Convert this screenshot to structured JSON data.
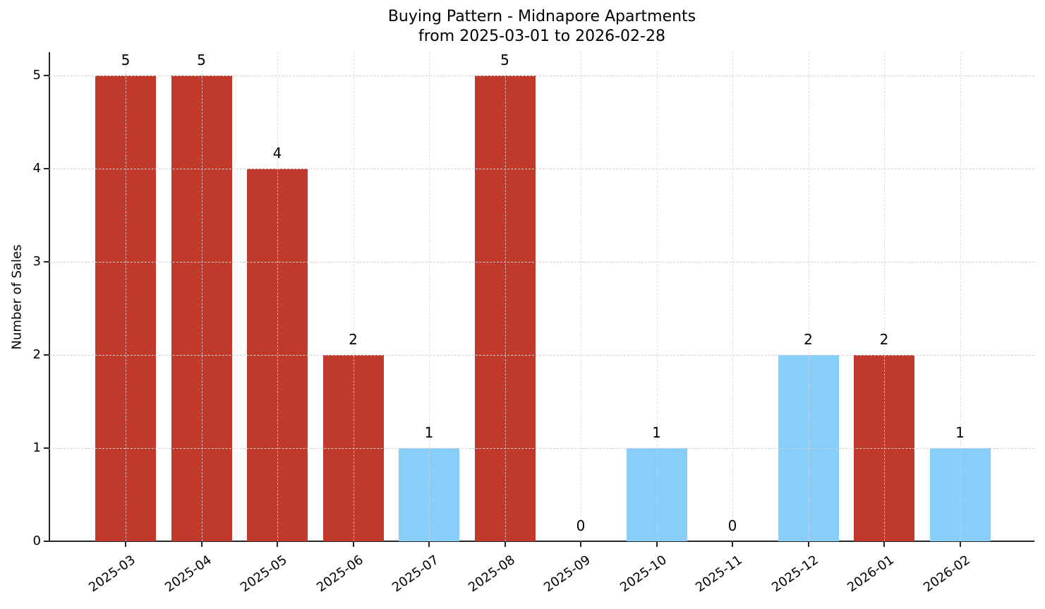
{
  "chart_data": {
    "type": "bar",
    "title": "Buying Pattern - Midnapore Apartments",
    "subtitle": "from 2025-03-01 to 2026-02-28",
    "xlabel": "",
    "ylabel": "Number of Sales",
    "ylim": [
      0,
      5.25
    ],
    "yticks": [
      0,
      1,
      2,
      3,
      4,
      5
    ],
    "grid": true,
    "legend": null,
    "categories": [
      "2025-03",
      "2025-04",
      "2025-05",
      "2025-06",
      "2025-07",
      "2025-08",
      "2025-09",
      "2025-10",
      "2025-11",
      "2025-12",
      "2026-01",
      "2026-02"
    ],
    "values": [
      5,
      5,
      4,
      2,
      1,
      5,
      0,
      1,
      0,
      2,
      2,
      1
    ],
    "bar_colors": [
      "#c0392b",
      "#c0392b",
      "#c0392b",
      "#c0392b",
      "#87cefa",
      "#c0392b",
      "#87cefa",
      "#87cefa",
      "#87cefa",
      "#87cefa",
      "#c0392b",
      "#87cefa"
    ],
    "data_labels": [
      "5",
      "5",
      "4",
      "2",
      "1",
      "5",
      "0",
      "1",
      "0",
      "2",
      "2",
      "1"
    ]
  },
  "colors": {
    "high": "#c0392b",
    "low": "#87cefa"
  }
}
